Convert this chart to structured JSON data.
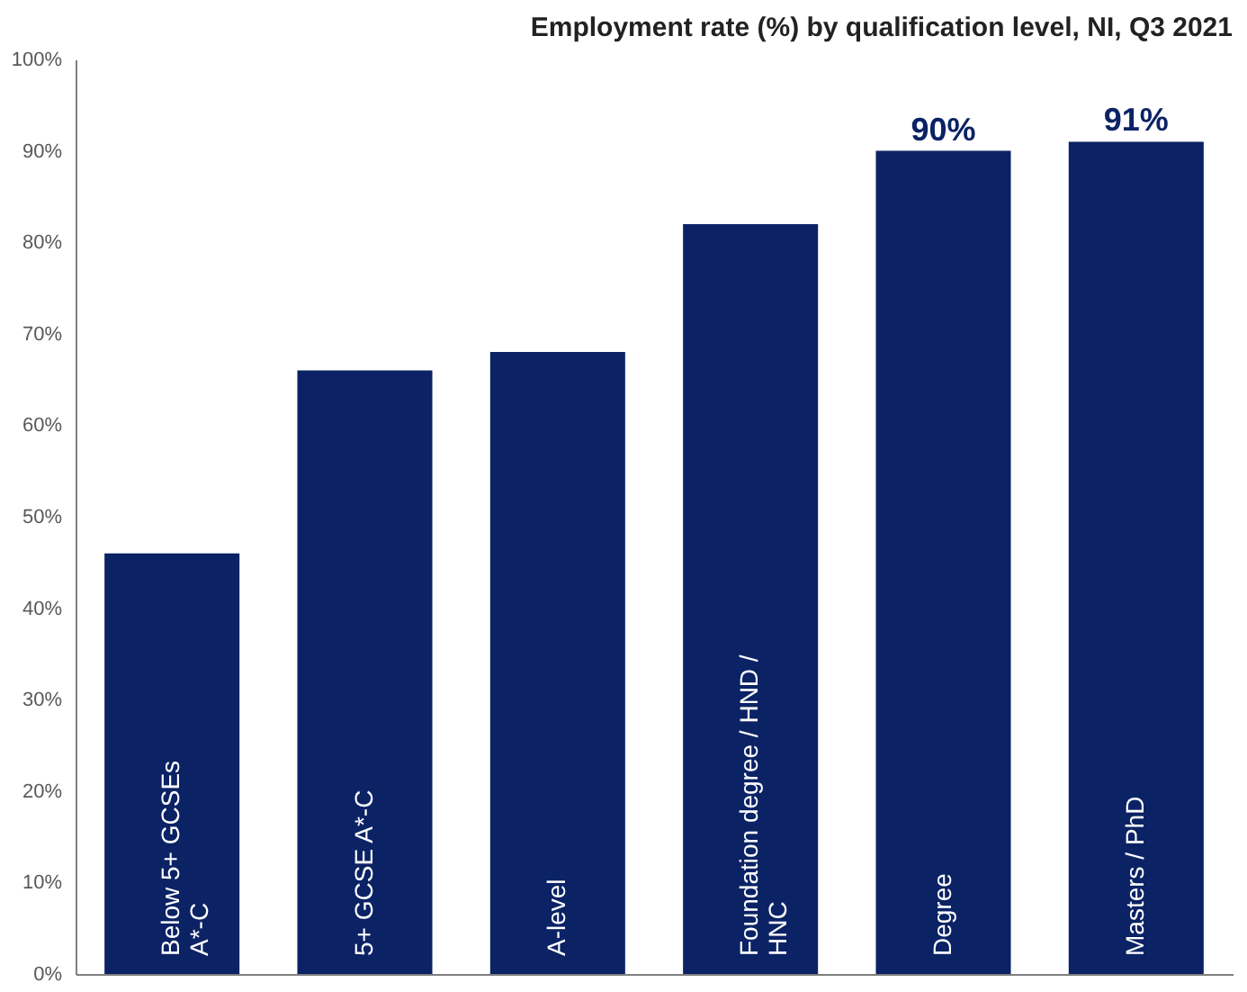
{
  "chart_data": {
    "type": "bar",
    "title": "Employment rate (%) by qualification level, NI, Q3 2021",
    "categories": [
      "Below 5+ GCSEs A*-C",
      "5+ GCSE A*-C",
      "A-level",
      "Foundation degree / HND / HNC",
      "Degree",
      "Masters / PhD"
    ],
    "values": [
      46,
      66,
      68,
      82,
      90,
      91
    ],
    "value_labels": [
      null,
      null,
      null,
      null,
      "90%",
      "91%"
    ],
    "color": "#0b2265",
    "ylim": [
      0,
      100
    ],
    "yticks": [
      {
        "value": 0,
        "label": "0%"
      },
      {
        "value": 10,
        "label": "10%"
      },
      {
        "value": 20,
        "label": "20%"
      },
      {
        "value": 30,
        "label": "30%"
      },
      {
        "value": 40,
        "label": "40%"
      },
      {
        "value": 50,
        "label": "50%"
      },
      {
        "value": 60,
        "label": "60%"
      },
      {
        "value": 70,
        "label": "70%"
      },
      {
        "value": 80,
        "label": "80%"
      },
      {
        "value": 90,
        "label": "90%"
      },
      {
        "value": 100,
        "label": "100%"
      }
    ],
    "grid": false
  }
}
